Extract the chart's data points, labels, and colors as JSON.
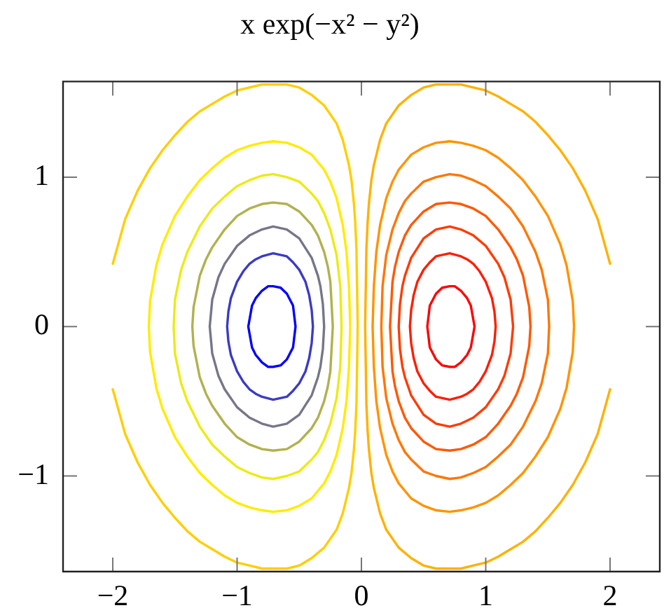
{
  "chart_data": {
    "type": "line",
    "title": "x exp(−x² − y²)",
    "xlim": [
      -2.4,
      2.4
    ],
    "ylim": [
      -1.64,
      1.64
    ],
    "xticks": [
      {
        "value": -2,
        "label": "−2"
      },
      {
        "value": -1,
        "label": "−1"
      },
      0,
      1,
      2
    ],
    "yticks": [
      {
        "value": -1,
        "label": "−1"
      },
      0,
      1
    ],
    "marker": "none",
    "line_style": "solid",
    "series": [
      {
        "color": "#0000ff",
        "x": [
          -0.53,
          -0.55,
          -0.6,
          -0.65,
          -0.71,
          -0.75,
          -0.8,
          -0.85,
          -0.88,
          -0.91,
          -0.88,
          -0.85,
          -0.8,
          -0.75,
          -0.71,
          -0.65,
          -0.6,
          -0.55,
          -0.53,
          -0.55
        ],
        "values": [
          0,
          0.14,
          0.22,
          0.26,
          0.27,
          0.27,
          0.24,
          0.19,
          0.14,
          0,
          -0.14,
          -0.19,
          -0.24,
          -0.27,
          -0.27,
          -0.26,
          -0.22,
          -0.14,
          0,
          0.14
        ]
      },
      {
        "color": "#3b3bc4",
        "x": [
          -0.39,
          -0.4,
          -0.42,
          -0.45,
          -0.5,
          -0.55,
          -0.6,
          -0.71,
          -0.8,
          -0.85,
          -0.9,
          -0.95,
          -1,
          -1.05,
          -1.07,
          -1.08,
          -1.07,
          -1.05,
          -1,
          -0.95,
          -0.9,
          -0.85,
          -0.8,
          -0.71,
          -0.6,
          -0.55,
          -0.5,
          -0.45,
          -0.42,
          -0.4,
          -0.39,
          -0.4
        ],
        "values": [
          0,
          0.11,
          0.21,
          0.3,
          0.38,
          0.43,
          0.47,
          0.49,
          0.47,
          0.45,
          0.42,
          0.37,
          0.3,
          0.19,
          0.1,
          0,
          -0.1,
          -0.19,
          -0.3,
          -0.37,
          -0.42,
          -0.45,
          -0.47,
          -0.49,
          -0.47,
          -0.43,
          -0.38,
          -0.3,
          -0.21,
          -0.11,
          0,
          0.11
        ]
      },
      {
        "color": "#767689",
        "x": [
          -0.3,
          -0.31,
          -0.33,
          -0.35,
          -0.4,
          -0.5,
          -0.6,
          -0.71,
          -0.8,
          -0.9,
          -1,
          -1.1,
          -1.15,
          -1.2,
          -1.22,
          -1.2,
          -1.15,
          -1.1,
          -1,
          -0.9,
          -0.8,
          -0.71,
          -0.6,
          -0.5,
          -0.4,
          -0.35,
          -0.33,
          -0.31,
          -0.3,
          -0.31
        ],
        "values": [
          0,
          0.15,
          0.27,
          0.34,
          0.46,
          0.59,
          0.65,
          0.67,
          0.65,
          0.61,
          0.54,
          0.42,
          0.33,
          0.18,
          0,
          -0.18,
          -0.33,
          -0.42,
          -0.54,
          -0.61,
          -0.65,
          -0.67,
          -0.65,
          -0.59,
          -0.46,
          -0.34,
          -0.27,
          -0.15,
          0,
          0.15
        ]
      },
      {
        "color": "#b1b14e",
        "x": [
          -0.23,
          -0.25,
          -0.27,
          -0.3,
          -0.35,
          -0.4,
          -0.5,
          -0.6,
          -0.71,
          -0.8,
          -0.9,
          -1,
          -1.1,
          -1.2,
          -1.25,
          -1.3,
          -1.35,
          -1.36,
          -1.35,
          -1.3,
          -1.25,
          -1.2,
          -1.1,
          -1,
          -0.9,
          -0.8,
          -0.71,
          -0.6,
          -0.5,
          -0.4,
          -0.35,
          -0.3,
          -0.27,
          -0.25,
          -0.23,
          -0.25
        ],
        "values": [
          0,
          0.3,
          0.4,
          0.5,
          0.61,
          0.68,
          0.77,
          0.82,
          0.83,
          0.82,
          0.79,
          0.74,
          0.65,
          0.53,
          0.45,
          0.34,
          0.13,
          0,
          -0.13,
          -0.34,
          -0.45,
          -0.53,
          -0.65,
          -0.74,
          -0.79,
          -0.82,
          -0.83,
          -0.82,
          -0.77,
          -0.68,
          -0.61,
          -0.5,
          -0.4,
          -0.3,
          0,
          0.3
        ]
      },
      {
        "color": "#ebeb14",
        "x": [
          -0.16,
          -0.17,
          -0.2,
          -0.25,
          -0.3,
          -0.35,
          -0.4,
          -0.5,
          -0.6,
          -0.71,
          -0.8,
          -0.9,
          -1,
          -1.1,
          -1.2,
          -1.3,
          -1.4,
          -1.45,
          -1.5,
          -1.51,
          -1.5,
          -1.45,
          -1.4,
          -1.3,
          -1.2,
          -1.1,
          -1,
          -0.9,
          -0.8,
          -0.71,
          -0.6,
          -0.5,
          -0.4,
          -0.35,
          -0.3,
          -0.25,
          -0.2,
          -0.17,
          -0.16,
          -0.17
        ],
        "values": [
          0,
          0.27,
          0.48,
          0.65,
          0.76,
          0.84,
          0.89,
          0.97,
          1,
          1.02,
          1.01,
          0.98,
          0.94,
          0.87,
          0.79,
          0.67,
          0.5,
          0.38,
          0.18,
          0,
          -0.18,
          -0.38,
          -0.5,
          -0.67,
          -0.79,
          -0.87,
          -0.94,
          -0.98,
          -1.01,
          -1.02,
          -1,
          -0.97,
          -0.89,
          -0.84,
          -0.76,
          -0.65,
          -0.48,
          -0.27,
          0,
          0.27
        ]
      },
      {
        "color": "#ffeb00",
        "x": [
          -0.09,
          -0.1,
          -0.12,
          -0.15,
          -0.2,
          -0.25,
          -0.3,
          -0.4,
          -0.5,
          -0.6,
          -0.71,
          -0.8,
          -0.9,
          -1,
          -1.1,
          -1.2,
          -1.3,
          -1.4,
          -1.5,
          -1.6,
          -1.65,
          -1.7,
          -1.71,
          -1.7,
          -1.65,
          -1.6,
          -1.5,
          -1.4,
          -1.3,
          -1.2,
          -1.1,
          -1,
          -0.9,
          -0.8,
          -0.71,
          -0.6,
          -0.5,
          -0.4,
          -0.3,
          -0.25,
          -0.2,
          -0.15,
          -0.12,
          -0.1,
          -0.09,
          -0.1
        ],
        "values": [
          0,
          0.27,
          0.5,
          0.68,
          0.86,
          0.97,
          1.05,
          1.15,
          1.2,
          1.23,
          1.24,
          1.23,
          1.21,
          1.18,
          1.13,
          1.06,
          0.98,
          0.87,
          0.74,
          0.55,
          0.41,
          0.17,
          0,
          -0.17,
          -0.41,
          -0.55,
          -0.74,
          -0.87,
          -0.98,
          -1.06,
          -1.13,
          -1.18,
          -1.21,
          -1.23,
          -1.24,
          -1.23,
          -1.2,
          -1.15,
          -1.05,
          -0.97,
          -0.86,
          -0.68,
          -0.5,
          -0.27,
          0,
          0.27
        ]
      },
      {
        "color": "#ffce00",
        "x": [
          -2,
          -1.9,
          -1.8,
          -1.7,
          -1.6,
          -1.5,
          -1.4,
          -1.3,
          -1.2,
          -1.1,
          -1,
          -0.9,
          -0.8,
          -0.71,
          -0.6,
          -0.5,
          -0.4,
          -0.3,
          -0.2,
          -0.15,
          -0.1,
          -0.08,
          -0.06,
          -0.05,
          -0.04,
          -0.03,
          -0.04,
          -0.05,
          -0.06,
          -0.08,
          -0.1,
          -0.15,
          -0.2,
          -0.3,
          -0.4,
          -0.5,
          -0.6,
          -0.71,
          -0.8,
          -0.9,
          -1,
          -1.1,
          -1.2,
          -1.3,
          -1.4,
          -1.5,
          -1.6,
          -1.7,
          -1.8,
          -1.9,
          -2
        ],
        "values": [
          0.42,
          0.72,
          0.91,
          1.06,
          1.18,
          1.28,
          1.37,
          1.44,
          1.49,
          1.54,
          1.58,
          1.6,
          1.62,
          1.62,
          1.62,
          1.6,
          1.55,
          1.48,
          1.36,
          1.25,
          1.08,
          0.98,
          0.82,
          0.7,
          0.52,
          0,
          -0.52,
          -0.7,
          -0.82,
          -0.98,
          -1.08,
          -1.25,
          -1.36,
          -1.48,
          -1.55,
          -1.6,
          -1.62,
          -1.62,
          -1.62,
          -1.6,
          -1.58,
          -1.54,
          -1.49,
          -1.44,
          -1.37,
          -1.28,
          -1.18,
          -1.06,
          -0.91,
          -0.72,
          -0.42
        ]
      },
      {
        "color": "#ffb100",
        "x": [
          2,
          1.9,
          1.8,
          1.7,
          1.6,
          1.5,
          1.4,
          1.3,
          1.2,
          1.1,
          1,
          0.9,
          0.8,
          0.71,
          0.6,
          0.5,
          0.4,
          0.3,
          0.2,
          0.15,
          0.1,
          0.08,
          0.06,
          0.05,
          0.04,
          0.03,
          0.04,
          0.05,
          0.06,
          0.08,
          0.1,
          0.15,
          0.2,
          0.3,
          0.4,
          0.5,
          0.6,
          0.71,
          0.8,
          0.9,
          1,
          1.1,
          1.2,
          1.3,
          1.4,
          1.5,
          1.6,
          1.7,
          1.8,
          1.9,
          2
        ],
        "values": [
          0.42,
          0.72,
          0.91,
          1.06,
          1.18,
          1.28,
          1.37,
          1.44,
          1.49,
          1.54,
          1.58,
          1.6,
          1.62,
          1.62,
          1.62,
          1.6,
          1.55,
          1.48,
          1.36,
          1.25,
          1.08,
          0.98,
          0.82,
          0.7,
          0.52,
          0,
          -0.52,
          -0.7,
          -0.82,
          -0.98,
          -1.08,
          -1.25,
          -1.36,
          -1.48,
          -1.55,
          -1.6,
          -1.62,
          -1.62,
          -1.62,
          -1.6,
          -1.58,
          -1.54,
          -1.49,
          -1.44,
          -1.37,
          -1.28,
          -1.18,
          -1.06,
          -0.91,
          -0.72,
          -0.42
        ]
      },
      {
        "color": "#ff9300",
        "x": [
          0.09,
          0.1,
          0.12,
          0.15,
          0.2,
          0.25,
          0.3,
          0.4,
          0.5,
          0.6,
          0.71,
          0.8,
          0.9,
          1,
          1.1,
          1.2,
          1.3,
          1.4,
          1.5,
          1.6,
          1.65,
          1.7,
          1.71,
          1.7,
          1.65,
          1.6,
          1.5,
          1.4,
          1.3,
          1.2,
          1.1,
          1,
          0.9,
          0.8,
          0.71,
          0.6,
          0.5,
          0.4,
          0.3,
          0.25,
          0.2,
          0.15,
          0.12,
          0.1,
          0.09,
          0.1
        ],
        "values": [
          0,
          0.27,
          0.5,
          0.68,
          0.86,
          0.97,
          1.05,
          1.15,
          1.2,
          1.23,
          1.24,
          1.23,
          1.21,
          1.18,
          1.13,
          1.06,
          0.98,
          0.87,
          0.74,
          0.55,
          0.41,
          0.17,
          0,
          -0.17,
          -0.41,
          -0.55,
          -0.74,
          -0.87,
          -0.98,
          -1.06,
          -1.13,
          -1.18,
          -1.21,
          -1.23,
          -1.24,
          -1.23,
          -1.2,
          -1.15,
          -1.05,
          -0.97,
          -0.86,
          -0.68,
          -0.5,
          -0.27,
          0,
          0.27
        ]
      },
      {
        "color": "#ff7600",
        "x": [
          0.16,
          0.17,
          0.2,
          0.25,
          0.3,
          0.35,
          0.4,
          0.5,
          0.6,
          0.71,
          0.8,
          0.9,
          1,
          1.1,
          1.2,
          1.3,
          1.4,
          1.45,
          1.5,
          1.51,
          1.5,
          1.45,
          1.4,
          1.3,
          1.2,
          1.1,
          1,
          0.9,
          0.8,
          0.71,
          0.6,
          0.5,
          0.4,
          0.35,
          0.3,
          0.25,
          0.2,
          0.17,
          0.16,
          0.17
        ],
        "values": [
          0,
          0.27,
          0.48,
          0.65,
          0.76,
          0.84,
          0.89,
          0.97,
          1,
          1.02,
          1.01,
          0.98,
          0.94,
          0.87,
          0.79,
          0.67,
          0.5,
          0.38,
          0.18,
          0,
          -0.18,
          -0.38,
          -0.5,
          -0.67,
          -0.79,
          -0.87,
          -0.94,
          -0.98,
          -1.01,
          -1.02,
          -1,
          -0.97,
          -0.89,
          -0.84,
          -0.76,
          -0.65,
          -0.48,
          -0.27,
          0,
          0.27
        ]
      },
      {
        "color": "#ff5800",
        "x": [
          0.23,
          0.25,
          0.27,
          0.3,
          0.35,
          0.4,
          0.5,
          0.6,
          0.71,
          0.8,
          0.9,
          1,
          1.1,
          1.2,
          1.25,
          1.3,
          1.35,
          1.36,
          1.35,
          1.3,
          1.25,
          1.2,
          1.1,
          1,
          0.9,
          0.8,
          0.71,
          0.6,
          0.5,
          0.4,
          0.35,
          0.3,
          0.27,
          0.25,
          0.23,
          0.25
        ],
        "values": [
          0,
          0.3,
          0.4,
          0.5,
          0.61,
          0.68,
          0.77,
          0.82,
          0.83,
          0.82,
          0.79,
          0.74,
          0.65,
          0.53,
          0.45,
          0.34,
          0.13,
          0,
          -0.13,
          -0.34,
          -0.45,
          -0.53,
          -0.65,
          -0.74,
          -0.79,
          -0.82,
          -0.83,
          -0.82,
          -0.77,
          -0.68,
          -0.61,
          -0.5,
          -0.4,
          -0.3,
          0,
          0.3
        ]
      },
      {
        "color": "#ff3b00",
        "x": [
          0.3,
          0.31,
          0.33,
          0.35,
          0.4,
          0.5,
          0.6,
          0.71,
          0.8,
          0.9,
          1,
          1.1,
          1.15,
          1.2,
          1.22,
          1.2,
          1.15,
          1.1,
          1,
          0.9,
          0.8,
          0.71,
          0.6,
          0.5,
          0.4,
          0.35,
          0.33,
          0.31,
          0.3,
          0.31
        ],
        "values": [
          0,
          0.15,
          0.27,
          0.34,
          0.46,
          0.59,
          0.65,
          0.67,
          0.65,
          0.61,
          0.54,
          0.42,
          0.33,
          0.18,
          0,
          -0.18,
          -0.33,
          -0.42,
          -0.54,
          -0.61,
          -0.65,
          -0.67,
          -0.65,
          -0.59,
          -0.46,
          -0.34,
          -0.27,
          -0.15,
          0,
          0.15
        ]
      },
      {
        "color": "#ff1d00",
        "x": [
          0.39,
          0.4,
          0.42,
          0.45,
          0.5,
          0.55,
          0.6,
          0.71,
          0.8,
          0.85,
          0.9,
          0.95,
          1,
          1.05,
          1.07,
          1.08,
          1.07,
          1.05,
          1,
          0.95,
          0.9,
          0.85,
          0.8,
          0.71,
          0.6,
          0.55,
          0.5,
          0.45,
          0.42,
          0.4,
          0.39,
          0.4
        ],
        "values": [
          0,
          0.11,
          0.21,
          0.3,
          0.38,
          0.43,
          0.47,
          0.49,
          0.47,
          0.45,
          0.42,
          0.37,
          0.3,
          0.19,
          0.1,
          0,
          -0.1,
          -0.19,
          -0.3,
          -0.37,
          -0.42,
          -0.45,
          -0.47,
          -0.49,
          -0.47,
          -0.43,
          -0.38,
          -0.3,
          -0.21,
          -0.11,
          0,
          0.11
        ]
      },
      {
        "color": "#ff0000",
        "x": [
          0.53,
          0.55,
          0.6,
          0.65,
          0.71,
          0.75,
          0.8,
          0.85,
          0.88,
          0.91,
          0.88,
          0.85,
          0.8,
          0.75,
          0.71,
          0.65,
          0.6,
          0.55,
          0.53,
          0.55
        ],
        "values": [
          0,
          0.14,
          0.22,
          0.26,
          0.27,
          0.27,
          0.24,
          0.19,
          0.14,
          0,
          -0.14,
          -0.19,
          -0.24,
          -0.27,
          -0.27,
          -0.26,
          -0.22,
          -0.14,
          0,
          0.14
        ]
      }
    ]
  }
}
